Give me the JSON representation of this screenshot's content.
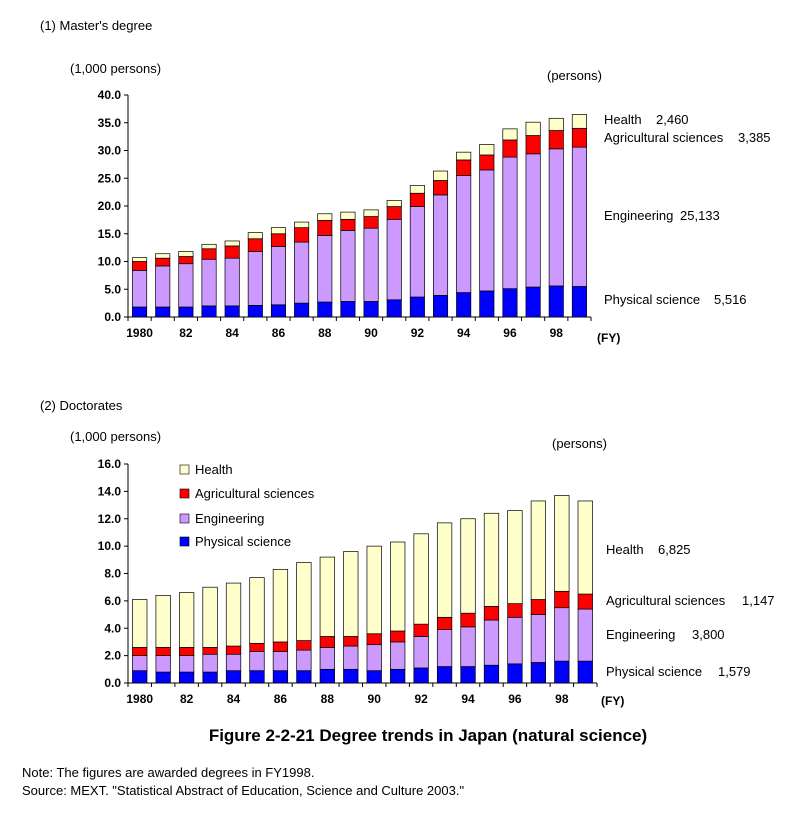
{
  "figure_title": "Figure 2-2-21  Degree trends in Japan (natural science)",
  "note": "Note: The figures are awarded degrees in FY1998.",
  "source": "Source: MEXT. \"Statistical Abstract of Education, Science and Culture 2003.\"",
  "colors": {
    "physical_science": "#0000ff",
    "engineering": "#cc99ff",
    "agricultural_sciences": "#ff0000",
    "health": "#ffffcc"
  },
  "chart_data": [
    {
      "type": "bar",
      "stacked": true,
      "title": "(1) Master's degree",
      "ylabel": "(1,000 persons)",
      "unit_label": "(persons)",
      "xlabel": "(FY)",
      "ylim": [
        0,
        40
      ],
      "yticks": [
        "0.0",
        "5.0",
        "10.0",
        "15.0",
        "20.0",
        "25.0",
        "30.0",
        "35.0",
        "40.0"
      ],
      "x": [
        1980,
        1981,
        1982,
        1983,
        1984,
        1985,
        1986,
        1987,
        1988,
        1989,
        1990,
        1991,
        1992,
        1993,
        1994,
        1995,
        1996,
        1997,
        1998,
        1999
      ],
      "xtick_labels": [
        "1980",
        "82",
        "84",
        "86",
        "88",
        "90",
        "92",
        "94",
        "96",
        "98"
      ],
      "series": [
        {
          "name": "Physical science",
          "values": [
            1.8,
            1.8,
            1.8,
            2.0,
            2.0,
            2.1,
            2.2,
            2.5,
            2.7,
            2.8,
            2.8,
            3.1,
            3.6,
            3.9,
            4.4,
            4.7,
            5.1,
            5.4,
            5.6,
            5.5
          ]
        },
        {
          "name": "Engineering",
          "values": [
            6.6,
            7.4,
            7.8,
            8.4,
            8.6,
            9.7,
            10.5,
            11.0,
            12.0,
            12.8,
            13.2,
            14.5,
            16.3,
            18.1,
            21.1,
            21.8,
            23.7,
            24.0,
            24.7,
            25.1
          ]
        },
        {
          "name": "Agricultural sciences",
          "values": [
            1.6,
            1.4,
            1.3,
            1.9,
            2.2,
            2.3,
            2.3,
            2.6,
            2.7,
            2.0,
            2.1,
            2.3,
            2.4,
            2.6,
            2.8,
            2.7,
            3.1,
            3.3,
            3.3,
            3.4
          ]
        },
        {
          "name": "Health",
          "values": [
            0.7,
            0.8,
            0.9,
            0.8,
            0.9,
            1.1,
            1.1,
            1.0,
            1.2,
            1.3,
            1.2,
            1.1,
            1.4,
            1.7,
            1.4,
            1.9,
            2.0,
            2.4,
            2.2,
            2.5
          ]
        }
      ],
      "annotations": [
        {
          "series": "Health",
          "label": "Health",
          "value": "2,460"
        },
        {
          "series": "Agricultural sciences",
          "label": "Agricultural sciences",
          "value": "3,385"
        },
        {
          "series": "Engineering",
          "label": "Engineering",
          "value": "25,133"
        },
        {
          "series": "Physical science",
          "label": "Physical science",
          "value": "5,516"
        }
      ]
    },
    {
      "type": "bar",
      "stacked": true,
      "title": "(2) Doctorates",
      "ylabel": "(1,000 persons)",
      "unit_label": "(persons)",
      "xlabel": "(FY)",
      "ylim": [
        0,
        16
      ],
      "yticks": [
        "0.0",
        "2.0",
        "4.0",
        "6.0",
        "8.0",
        "10.0",
        "12.0",
        "14.0",
        "16.0"
      ],
      "x": [
        1980,
        1981,
        1982,
        1983,
        1984,
        1985,
        1986,
        1987,
        1988,
        1989,
        1990,
        1991,
        1992,
        1993,
        1994,
        1995,
        1996,
        1997,
        1998,
        1999
      ],
      "xtick_labels": [
        "1980",
        "82",
        "84",
        "86",
        "88",
        "90",
        "92",
        "94",
        "96",
        "98"
      ],
      "legend": [
        "Health",
        "Agricultural sciences",
        "Engineering",
        "Physical science"
      ],
      "legend_position": "top-left",
      "series": [
        {
          "name": "Physical science",
          "values": [
            0.9,
            0.8,
            0.8,
            0.8,
            0.9,
            0.9,
            0.9,
            0.9,
            1.0,
            1.0,
            0.9,
            1.0,
            1.1,
            1.2,
            1.2,
            1.3,
            1.4,
            1.5,
            1.6,
            1.6
          ]
        },
        {
          "name": "Engineering",
          "values": [
            1.1,
            1.2,
            1.2,
            1.3,
            1.2,
            1.4,
            1.4,
            1.5,
            1.6,
            1.7,
            1.9,
            2.0,
            2.3,
            2.7,
            2.9,
            3.3,
            3.4,
            3.5,
            3.9,
            3.8
          ]
        },
        {
          "name": "Agricultural sciences",
          "values": [
            0.6,
            0.6,
            0.6,
            0.5,
            0.6,
            0.6,
            0.7,
            0.7,
            0.8,
            0.7,
            0.8,
            0.8,
            0.9,
            0.9,
            1.0,
            1.0,
            1.0,
            1.1,
            1.2,
            1.1
          ]
        },
        {
          "name": "Health",
          "values": [
            3.5,
            3.8,
            4.0,
            4.4,
            4.6,
            4.8,
            5.3,
            5.7,
            5.8,
            6.2,
            6.4,
            6.5,
            6.6,
            6.9,
            6.9,
            6.8,
            6.8,
            7.2,
            7.0,
            6.8
          ]
        }
      ],
      "annotations": [
        {
          "series": "Health",
          "label": "Health",
          "value": "6,825"
        },
        {
          "series": "Agricultural sciences",
          "label": "Agricultural sciences",
          "value": "1,147"
        },
        {
          "series": "Engineering",
          "label": "Engineering",
          "value": "3,800"
        },
        {
          "series": "Physical science",
          "label": "Physical science",
          "value": "1,579"
        }
      ]
    }
  ]
}
